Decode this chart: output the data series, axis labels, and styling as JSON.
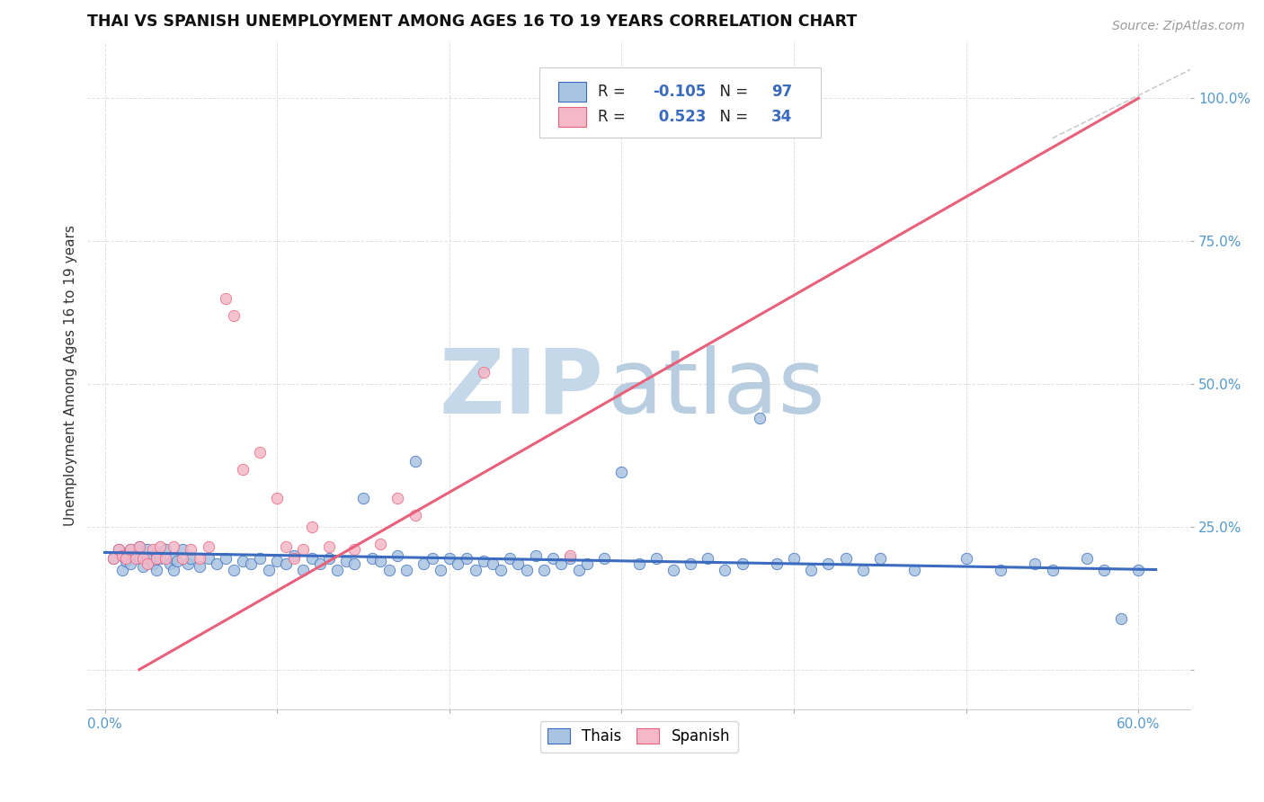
{
  "title": "THAI VS SPANISH UNEMPLOYMENT AMONG AGES 16 TO 19 YEARS CORRELATION CHART",
  "source": "Source: ZipAtlas.com",
  "xlabel_ticks": [
    "0.0%",
    "",
    "",
    "",
    "",
    "",
    "60.0%"
  ],
  "xlabel_vals": [
    0.0,
    0.1,
    0.2,
    0.3,
    0.4,
    0.5,
    0.6
  ],
  "ylabel_ticks": [
    "",
    "25.0%",
    "50.0%",
    "75.0%",
    "100.0%"
  ],
  "ylabel_vals": [
    0.0,
    0.25,
    0.5,
    0.75,
    1.0
  ],
  "xlim": [
    -0.01,
    0.63
  ],
  "ylim": [
    -0.07,
    1.1
  ],
  "legend_thai_R": "-0.105",
  "legend_thai_N": "97",
  "legend_spanish_R": "0.523",
  "legend_spanish_N": "34",
  "thai_color": "#a8c4e0",
  "spanish_color": "#f4b8c8",
  "thai_line_color": "#3a6bbf",
  "spanish_line_color": "#e8607a",
  "watermark_zip_color": "#c5d8ea",
  "watermark_atlas_color": "#b8cee0",
  "grid_color": "#dddddd",
  "thai_scatter_x": [
    0.005,
    0.008,
    0.01,
    0.01,
    0.012,
    0.015,
    0.015,
    0.018,
    0.02,
    0.02,
    0.022,
    0.025,
    0.025,
    0.028,
    0.03,
    0.03,
    0.032,
    0.035,
    0.038,
    0.04,
    0.04,
    0.042,
    0.045,
    0.048,
    0.05,
    0.055,
    0.06,
    0.065,
    0.07,
    0.075,
    0.08,
    0.085,
    0.09,
    0.095,
    0.1,
    0.105,
    0.11,
    0.115,
    0.12,
    0.125,
    0.13,
    0.135,
    0.14,
    0.145,
    0.15,
    0.155,
    0.16,
    0.165,
    0.17,
    0.175,
    0.18,
    0.185,
    0.19,
    0.195,
    0.2,
    0.205,
    0.21,
    0.215,
    0.22,
    0.225,
    0.23,
    0.235,
    0.24,
    0.245,
    0.25,
    0.255,
    0.26,
    0.265,
    0.27,
    0.275,
    0.28,
    0.29,
    0.3,
    0.31,
    0.32,
    0.33,
    0.34,
    0.35,
    0.36,
    0.37,
    0.38,
    0.39,
    0.4,
    0.41,
    0.42,
    0.43,
    0.44,
    0.45,
    0.47,
    0.5,
    0.52,
    0.54,
    0.55,
    0.57,
    0.58,
    0.59,
    0.6
  ],
  "thai_scatter_y": [
    0.195,
    0.21,
    0.2,
    0.175,
    0.19,
    0.21,
    0.185,
    0.2,
    0.195,
    0.215,
    0.18,
    0.21,
    0.195,
    0.185,
    0.2,
    0.175,
    0.195,
    0.21,
    0.185,
    0.195,
    0.175,
    0.19,
    0.21,
    0.185,
    0.195,
    0.18,
    0.195,
    0.185,
    0.195,
    0.175,
    0.19,
    0.185,
    0.195,
    0.175,
    0.19,
    0.185,
    0.2,
    0.175,
    0.195,
    0.185,
    0.195,
    0.175,
    0.19,
    0.185,
    0.3,
    0.195,
    0.19,
    0.175,
    0.2,
    0.175,
    0.365,
    0.185,
    0.195,
    0.175,
    0.195,
    0.185,
    0.195,
    0.175,
    0.19,
    0.185,
    0.175,
    0.195,
    0.185,
    0.175,
    0.2,
    0.175,
    0.195,
    0.185,
    0.195,
    0.175,
    0.185,
    0.195,
    0.345,
    0.185,
    0.195,
    0.175,
    0.185,
    0.195,
    0.175,
    0.185,
    0.44,
    0.185,
    0.195,
    0.175,
    0.185,
    0.195,
    0.175,
    0.195,
    0.175,
    0.195,
    0.175,
    0.185,
    0.175,
    0.195,
    0.175,
    0.09,
    0.175
  ],
  "spanish_scatter_x": [
    0.005,
    0.008,
    0.01,
    0.012,
    0.015,
    0.018,
    0.02,
    0.022,
    0.025,
    0.028,
    0.03,
    0.032,
    0.035,
    0.04,
    0.045,
    0.05,
    0.055,
    0.06,
    0.07,
    0.075,
    0.08,
    0.09,
    0.1,
    0.105,
    0.11,
    0.115,
    0.12,
    0.13,
    0.145,
    0.16,
    0.17,
    0.18,
    0.22,
    0.27
  ],
  "spanish_scatter_y": [
    0.195,
    0.21,
    0.2,
    0.195,
    0.21,
    0.195,
    0.215,
    0.195,
    0.185,
    0.21,
    0.195,
    0.215,
    0.195,
    0.215,
    0.195,
    0.21,
    0.195,
    0.215,
    0.65,
    0.62,
    0.35,
    0.38,
    0.3,
    0.215,
    0.195,
    0.21,
    0.25,
    0.215,
    0.21,
    0.22,
    0.3,
    0.27,
    0.52,
    0.2
  ],
  "thai_trendline_x": [
    0.0,
    0.61
  ],
  "thai_trendline_y": [
    0.205,
    0.175
  ],
  "spanish_trendline_x": [
    0.02,
    0.6
  ],
  "spanish_trendline_y": [
    0.0,
    1.0
  ]
}
